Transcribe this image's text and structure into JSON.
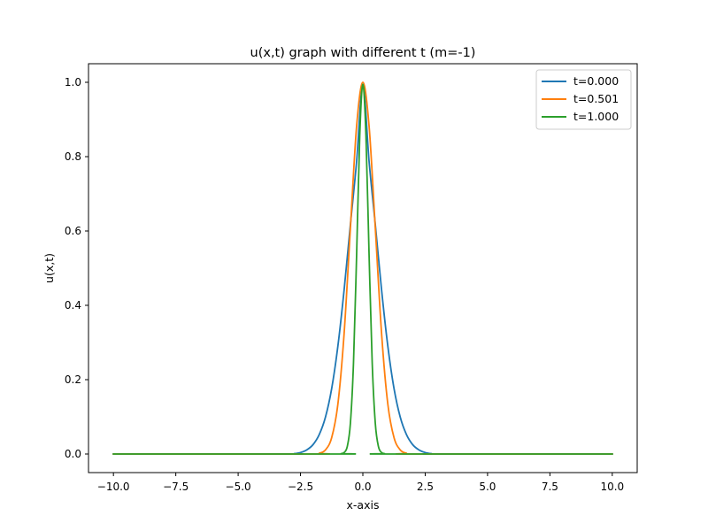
{
  "chart_data": {
    "type": "line",
    "title": "u(x,t) graph with different t (m=-1)",
    "xlabel": "x-axis",
    "ylabel": "u(x,t)",
    "xlim": [
      -11.0,
      11.0
    ],
    "ylim": [
      -0.05,
      1.05
    ],
    "grid": false,
    "legend_position": "upper right",
    "x_ticks": [
      -10.0,
      -7.5,
      -5.0,
      -2.5,
      0.0,
      2.5,
      5.0,
      7.5,
      10.0
    ],
    "x_tick_labels": [
      "−10.0",
      "−7.5",
      "−5.0",
      "−2.5",
      "0.0",
      "2.5",
      "5.0",
      "7.5",
      "10.0"
    ],
    "y_ticks": [
      0.0,
      0.2,
      0.4,
      0.6,
      0.8,
      1.0
    ],
    "y_tick_labels": [
      "0.0",
      "0.2",
      "0.4",
      "0.6",
      "0.8",
      "1.0"
    ],
    "series": [
      {
        "name": "t=0.000",
        "color": "#1f77b4",
        "x": [
          -10,
          -3,
          -2.75,
          -2.5,
          -2.25,
          -2,
          -1.75,
          -1.5,
          -1.25,
          -1,
          -0.75,
          -0.5,
          -0.25,
          0,
          0.25,
          0.5,
          0.75,
          1,
          1.25,
          1.5,
          1.75,
          2,
          2.25,
          2.5,
          2.75,
          3,
          10
        ],
        "y": [
          0.0,
          0.0,
          0.001,
          0.004,
          0.011,
          0.025,
          0.052,
          0.099,
          0.176,
          0.291,
          0.442,
          0.617,
          0.787,
          0.995,
          0.787,
          0.617,
          0.442,
          0.291,
          0.176,
          0.099,
          0.052,
          0.025,
          0.011,
          0.004,
          0.001,
          0.0,
          0.0
        ]
      },
      {
        "name": "t=0.501",
        "color": "#ff7f0e",
        "x": [
          -10,
          -2,
          -1.75,
          -1.5,
          -1.25,
          -1,
          -0.75,
          -0.5,
          -0.25,
          0,
          0.25,
          0.5,
          0.75,
          1,
          1.25,
          1.5,
          1.75,
          2,
          10
        ],
        "y": [
          0.0,
          0.0,
          0.002,
          0.011,
          0.044,
          0.135,
          0.325,
          0.607,
          0.882,
          1.0,
          0.882,
          0.607,
          0.325,
          0.135,
          0.044,
          0.011,
          0.002,
          0.0,
          0.0
        ]
      },
      {
        "name": "t=1.000",
        "color": "#2ca02c",
        "x": [
          -10,
          -1,
          -0.875,
          -0.75,
          -0.625,
          -0.5,
          -0.375,
          -0.25,
          -0.125,
          0,
          0.125,
          0.25,
          0.375,
          0.5,
          0.625,
          0.75,
          0.875,
          1,
          10
        ],
        "y": [
          0.0,
          0.0,
          0.001,
          0.004,
          0.02,
          0.082,
          0.245,
          0.535,
          0.855,
          0.995,
          0.855,
          0.535,
          0.245,
          0.082,
          0.02,
          0.004,
          0.001,
          0.0,
          0.0
        ]
      }
    ]
  }
}
